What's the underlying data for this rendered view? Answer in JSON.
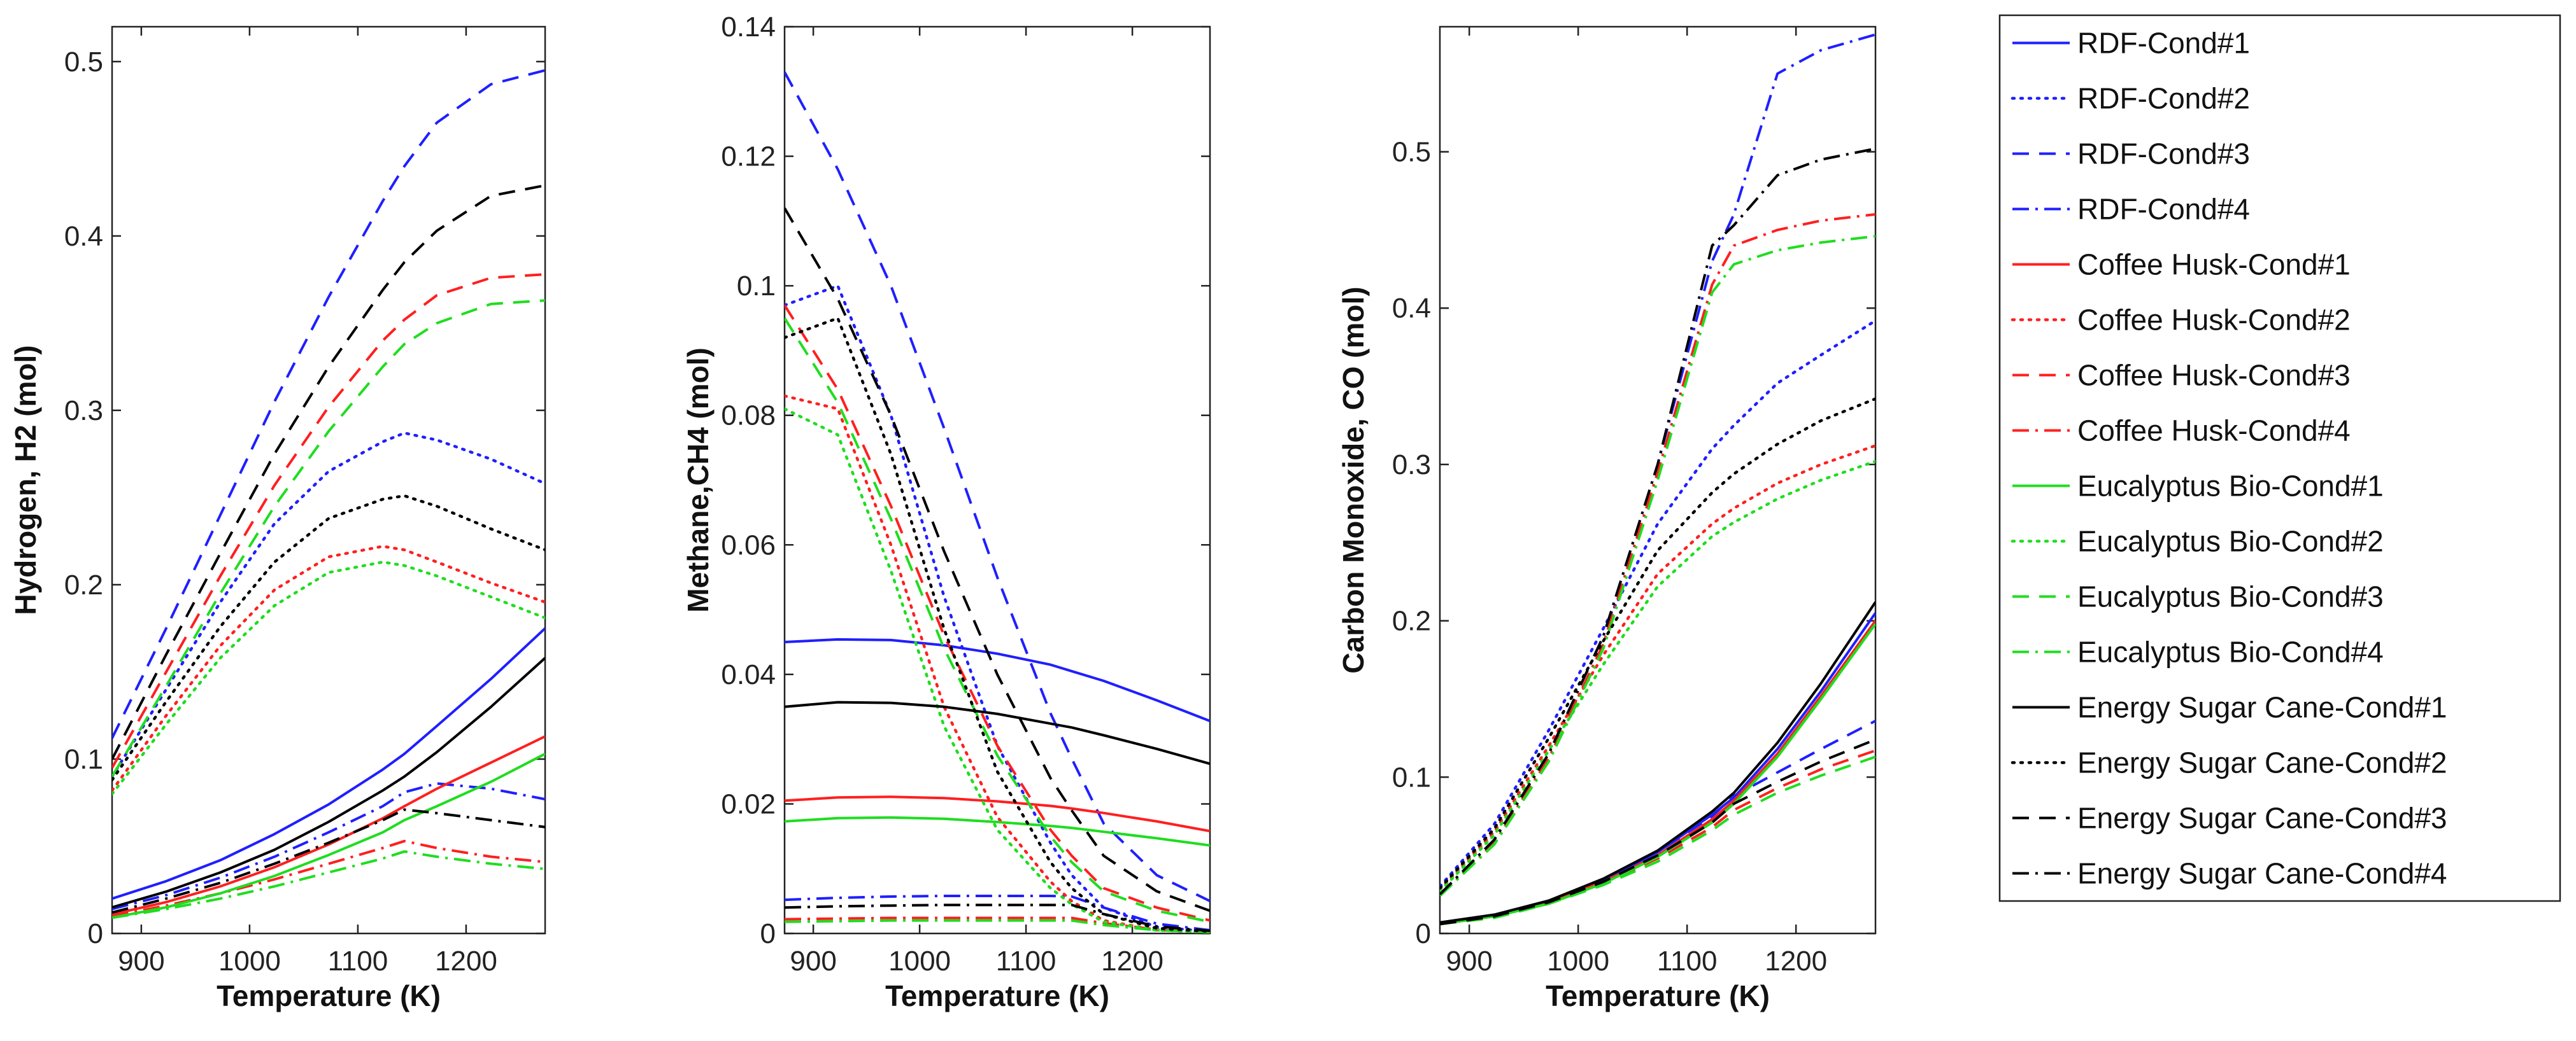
{
  "colors": {
    "RDF": "#1f1fff",
    "Coffee Husk": "#ff1f1f",
    "Eucalyptus Bio": "#1fdd1f",
    "Energy Sugar Cane": "#000000"
  },
  "legend": {
    "placement": "right",
    "entries": [
      {
        "label": "RDF-Cond#1",
        "color": "#1f1fff",
        "dash": "solid"
      },
      {
        "label": "RDF-Cond#2",
        "color": "#1f1fff",
        "dash": "dotted"
      },
      {
        "label": "RDF-Cond#3",
        "color": "#1f1fff",
        "dash": "dashed"
      },
      {
        "label": "RDF-Cond#4",
        "color": "#1f1fff",
        "dash": "dashdot"
      },
      {
        "label": "Coffee Husk-Cond#1",
        "color": "#ff1f1f",
        "dash": "solid"
      },
      {
        "label": "Coffee Husk-Cond#2",
        "color": "#ff1f1f",
        "dash": "dotted"
      },
      {
        "label": "Coffee Husk-Cond#3",
        "color": "#ff1f1f",
        "dash": "dashed"
      },
      {
        "label": "Coffee Husk-Cond#4",
        "color": "#ff1f1f",
        "dash": "dashdot"
      },
      {
        "label": "Eucalyptus Bio-Cond#1",
        "color": "#1fdd1f",
        "dash": "solid"
      },
      {
        "label": "Eucalyptus Bio-Cond#2",
        "color": "#1fdd1f",
        "dash": "dotted"
      },
      {
        "label": "Eucalyptus Bio-Cond#3",
        "color": "#1fdd1f",
        "dash": "dashed"
      },
      {
        "label": "Eucalyptus Bio-Cond#4",
        "color": "#1fdd1f",
        "dash": "dashdot"
      },
      {
        "label": "Energy Sugar Cane-Cond#1",
        "color": "#000000",
        "dash": "solid"
      },
      {
        "label": "Energy Sugar Cane-Cond#2",
        "color": "#000000",
        "dash": "dotted"
      },
      {
        "label": "Energy Sugar Cane-Cond#3",
        "color": "#000000",
        "dash": "dashed"
      },
      {
        "label": "Energy Sugar Cane-Cond#4",
        "color": "#000000",
        "dash": "dashdot"
      }
    ]
  },
  "chart_data": [
    {
      "type": "line",
      "xlabel": "Temperature (K)",
      "ylabel": "Hydrogen, H2 (mol)",
      "xlim": [
        873,
        1273
      ],
      "ylim": [
        0,
        0.52
      ],
      "xticks": [
        900,
        1000,
        1100,
        1200
      ],
      "yticks": [
        0,
        0.1,
        0.2,
        0.3,
        0.4,
        0.5
      ],
      "grid": false,
      "x": [
        873,
        923,
        973,
        1023,
        1073,
        1123,
        1143,
        1173,
        1223,
        1273
      ],
      "series": [
        {
          "name": "RDF-Cond#1",
          "values": [
            0.02,
            0.03,
            0.042,
            0.057,
            0.074,
            0.094,
            0.103,
            0.119,
            0.146,
            0.175
          ]
        },
        {
          "name": "RDF-Cond#2",
          "values": [
            0.09,
            0.14,
            0.19,
            0.235,
            0.265,
            0.282,
            0.287,
            0.283,
            0.272,
            0.258
          ]
        },
        {
          "name": "RDF-Cond#3",
          "values": [
            0.112,
            0.175,
            0.24,
            0.305,
            0.365,
            0.42,
            0.44,
            0.465,
            0.487,
            0.495
          ]
        },
        {
          "name": "RDF-Cond#4",
          "values": [
            0.014,
            0.022,
            0.032,
            0.044,
            0.058,
            0.073,
            0.081,
            0.086,
            0.083,
            0.077
          ]
        },
        {
          "name": "Coffee Husk-Cond#1",
          "values": [
            0.011,
            0.018,
            0.027,
            0.038,
            0.051,
            0.066,
            0.073,
            0.083,
            0.098,
            0.113
          ]
        },
        {
          "name": "Coffee Husk-Cond#2",
          "values": [
            0.082,
            0.125,
            0.165,
            0.197,
            0.216,
            0.222,
            0.22,
            0.213,
            0.201,
            0.19
          ]
        },
        {
          "name": "Coffee Husk-Cond#3",
          "values": [
            0.095,
            0.15,
            0.205,
            0.257,
            0.302,
            0.34,
            0.352,
            0.366,
            0.376,
            0.378
          ]
        },
        {
          "name": "Coffee Husk-Cond#4",
          "values": [
            0.01,
            0.016,
            0.023,
            0.031,
            0.04,
            0.049,
            0.053,
            0.049,
            0.044,
            0.041
          ]
        },
        {
          "name": "Eucalyptus Bio-Cond#1",
          "values": [
            0.009,
            0.015,
            0.023,
            0.033,
            0.045,
            0.058,
            0.065,
            0.073,
            0.087,
            0.103
          ]
        },
        {
          "name": "Eucalyptus Bio-Cond#2",
          "values": [
            0.08,
            0.12,
            0.158,
            0.188,
            0.207,
            0.213,
            0.211,
            0.205,
            0.193,
            0.181
          ]
        },
        {
          "name": "Eucalyptus Bio-Cond#3",
          "values": [
            0.09,
            0.142,
            0.195,
            0.245,
            0.288,
            0.325,
            0.338,
            0.35,
            0.361,
            0.363
          ]
        },
        {
          "name": "Eucalyptus Bio-Cond#4",
          "values": [
            0.009,
            0.014,
            0.02,
            0.027,
            0.035,
            0.043,
            0.047,
            0.044,
            0.04,
            0.037
          ]
        },
        {
          "name": "Energy Sugar Cane-Cond#1",
          "values": [
            0.015,
            0.024,
            0.035,
            0.048,
            0.064,
            0.082,
            0.09,
            0.104,
            0.13,
            0.158
          ]
        },
        {
          "name": "Energy Sugar Cane-Cond#2",
          "values": [
            0.088,
            0.133,
            0.176,
            0.213,
            0.238,
            0.249,
            0.251,
            0.245,
            0.232,
            0.22
          ]
        },
        {
          "name": "Energy Sugar Cane-Cond#3",
          "values": [
            0.1,
            0.16,
            0.218,
            0.275,
            0.325,
            0.369,
            0.385,
            0.403,
            0.423,
            0.429
          ]
        },
        {
          "name": "Energy Sugar Cane-Cond#4",
          "values": [
            0.012,
            0.02,
            0.029,
            0.04,
            0.052,
            0.065,
            0.071,
            0.069,
            0.065,
            0.061
          ]
        }
      ]
    },
    {
      "type": "line",
      "xlabel": "Temperature (K)",
      "ylabel": "Methane,CH4 (mol)",
      "xlim": [
        873,
        1273
      ],
      "ylim": [
        0,
        0.14
      ],
      "xticks": [
        900,
        1000,
        1100,
        1200
      ],
      "yticks": [
        0,
        0.02,
        0.04,
        0.06,
        0.08,
        0.1,
        0.12,
        0.14
      ],
      "grid": false,
      "x": [
        873,
        923,
        973,
        1023,
        1073,
        1123,
        1143,
        1173,
        1223,
        1273
      ],
      "series": [
        {
          "name": "RDF-Cond#1",
          "values": [
            0.045,
            0.0454,
            0.0453,
            0.0445,
            0.0432,
            0.0415,
            0.0405,
            0.039,
            0.036,
            0.0328
          ]
        },
        {
          "name": "RDF-Cond#2",
          "values": [
            0.097,
            0.1,
            0.08,
            0.052,
            0.029,
            0.014,
            0.009,
            0.004,
            0.001,
            0.0003
          ]
        },
        {
          "name": "RDF-Cond#3",
          "values": [
            0.133,
            0.118,
            0.1,
            0.078,
            0.055,
            0.034,
            0.027,
            0.017,
            0.009,
            0.005
          ]
        },
        {
          "name": "RDF-Cond#4",
          "values": [
            0.0052,
            0.0055,
            0.0057,
            0.0058,
            0.0058,
            0.0058,
            0.0057,
            0.004,
            0.0015,
            0.0005
          ]
        },
        {
          "name": "Coffee Husk-Cond#1",
          "values": [
            0.0205,
            0.021,
            0.0211,
            0.0209,
            0.0204,
            0.0197,
            0.0193,
            0.0186,
            0.0173,
            0.0158
          ]
        },
        {
          "name": "Coffee Husk-Cond#2",
          "values": [
            0.083,
            0.081,
            0.06,
            0.035,
            0.018,
            0.008,
            0.005,
            0.002,
            0.0005,
            0.0002
          ]
        },
        {
          "name": "Coffee Husk-Cond#3",
          "values": [
            0.097,
            0.084,
            0.066,
            0.046,
            0.029,
            0.016,
            0.012,
            0.007,
            0.004,
            0.002
          ]
        },
        {
          "name": "Coffee Husk-Cond#4",
          "values": [
            0.0022,
            0.0023,
            0.0024,
            0.0024,
            0.0024,
            0.0024,
            0.0024,
            0.0016,
            0.0006,
            0.0002
          ]
        },
        {
          "name": "Eucalyptus Bio-Cond#1",
          "values": [
            0.0173,
            0.0178,
            0.0179,
            0.0177,
            0.0172,
            0.0166,
            0.0163,
            0.0157,
            0.0147,
            0.0136
          ]
        },
        {
          "name": "Eucalyptus Bio-Cond#2",
          "values": [
            0.081,
            0.077,
            0.056,
            0.032,
            0.016,
            0.007,
            0.0045,
            0.0018,
            0.0005,
            0.0002
          ]
        },
        {
          "name": "Eucalyptus Bio-Cond#3",
          "values": [
            0.095,
            0.082,
            0.064,
            0.044,
            0.0275,
            0.015,
            0.011,
            0.0065,
            0.0035,
            0.0018
          ]
        },
        {
          "name": "Eucalyptus Bio-Cond#4",
          "values": [
            0.0018,
            0.0019,
            0.002,
            0.002,
            0.002,
            0.002,
            0.002,
            0.0013,
            0.0005,
            0.0002
          ]
        },
        {
          "name": "Energy Sugar Cane-Cond#1",
          "values": [
            0.035,
            0.0357,
            0.0356,
            0.035,
            0.0339,
            0.0324,
            0.0318,
            0.0306,
            0.0285,
            0.0262
          ]
        },
        {
          "name": "Energy Sugar Cane-Cond#2",
          "values": [
            0.092,
            0.095,
            0.074,
            0.047,
            0.025,
            0.011,
            0.007,
            0.003,
            0.0008,
            0.0003
          ]
        },
        {
          "name": "Energy Sugar Cane-Cond#3",
          "values": [
            0.112,
            0.098,
            0.08,
            0.059,
            0.04,
            0.024,
            0.019,
            0.012,
            0.0065,
            0.0035
          ]
        },
        {
          "name": "Energy Sugar Cane-Cond#4",
          "values": [
            0.004,
            0.0042,
            0.0043,
            0.0044,
            0.0044,
            0.0044,
            0.0044,
            0.003,
            0.0011,
            0.0004
          ]
        }
      ]
    },
    {
      "type": "line",
      "xlabel": "Temperature (K)",
      "ylabel": "Carbon Monoxide, CO (mol)",
      "xlim": [
        873,
        1273
      ],
      "ylim": [
        0,
        0.58
      ],
      "xticks": [
        900,
        1000,
        1100,
        1200
      ],
      "yticks": [
        0,
        0.1,
        0.2,
        0.3,
        0.4,
        0.5
      ],
      "grid": false,
      "x": [
        873,
        923,
        973,
        1023,
        1073,
        1123,
        1143,
        1183,
        1223,
        1273
      ],
      "series": [
        {
          "name": "RDF-Cond#1",
          "values": [
            0.007,
            0.012,
            0.021,
            0.034,
            0.052,
            0.076,
            0.087,
            0.118,
            0.155,
            0.205
          ]
        },
        {
          "name": "RDF-Cond#2",
          "values": [
            0.03,
            0.07,
            0.13,
            0.195,
            0.262,
            0.31,
            0.325,
            0.352,
            0.37,
            0.392
          ]
        },
        {
          "name": "RDF-Cond#3",
          "values": [
            0.006,
            0.011,
            0.02,
            0.034,
            0.052,
            0.075,
            0.088,
            0.103,
            0.118,
            0.136
          ]
        },
        {
          "name": "RDF-Cond#4",
          "values": [
            0.025,
            0.06,
            0.115,
            0.19,
            0.3,
            0.43,
            0.46,
            0.55,
            0.565,
            0.575
          ]
        },
        {
          "name": "Coffee Husk-Cond#1",
          "values": [
            0.006,
            0.011,
            0.02,
            0.033,
            0.05,
            0.073,
            0.085,
            0.115,
            0.152,
            0.2
          ]
        },
        {
          "name": "Coffee Husk-Cond#2",
          "values": [
            0.028,
            0.065,
            0.12,
            0.178,
            0.23,
            0.262,
            0.272,
            0.288,
            0.3,
            0.312
          ]
        },
        {
          "name": "Coffee Husk-Cond#3",
          "values": [
            0.006,
            0.011,
            0.02,
            0.032,
            0.048,
            0.068,
            0.079,
            0.093,
            0.105,
            0.117
          ]
        },
        {
          "name": "Coffee Husk-Cond#4",
          "values": [
            0.024,
            0.058,
            0.112,
            0.185,
            0.295,
            0.415,
            0.44,
            0.45,
            0.456,
            0.46
          ]
        },
        {
          "name": "Eucalyptus Bio-Cond#1",
          "values": [
            0.006,
            0.011,
            0.019,
            0.032,
            0.049,
            0.071,
            0.083,
            0.113,
            0.15,
            0.198
          ]
        },
        {
          "name": "Eucalyptus Bio-Cond#2",
          "values": [
            0.027,
            0.063,
            0.117,
            0.172,
            0.222,
            0.254,
            0.263,
            0.278,
            0.29,
            0.302
          ]
        },
        {
          "name": "Eucalyptus Bio-Cond#3",
          "values": [
            0.006,
            0.01,
            0.019,
            0.031,
            0.046,
            0.066,
            0.076,
            0.09,
            0.101,
            0.113
          ]
        },
        {
          "name": "Eucalyptus Bio-Cond#4",
          "values": [
            0.024,
            0.057,
            0.11,
            0.182,
            0.29,
            0.41,
            0.428,
            0.437,
            0.442,
            0.446
          ]
        },
        {
          "name": "Energy Sugar Cane-Cond#1",
          "values": [
            0.007,
            0.012,
            0.021,
            0.035,
            0.053,
            0.078,
            0.09,
            0.122,
            0.16,
            0.212
          ]
        },
        {
          "name": "Energy Sugar Cane-Cond#2",
          "values": [
            0.029,
            0.067,
            0.125,
            0.187,
            0.245,
            0.282,
            0.294,
            0.313,
            0.328,
            0.342
          ]
        },
        {
          "name": "Energy Sugar Cane-Cond#3",
          "values": [
            0.006,
            0.011,
            0.02,
            0.033,
            0.05,
            0.071,
            0.083,
            0.097,
            0.11,
            0.124
          ]
        },
        {
          "name": "Energy Sugar Cane-Cond#4",
          "values": [
            0.025,
            0.06,
            0.115,
            0.19,
            0.3,
            0.44,
            0.453,
            0.485,
            0.495,
            0.502
          ]
        }
      ]
    }
  ]
}
